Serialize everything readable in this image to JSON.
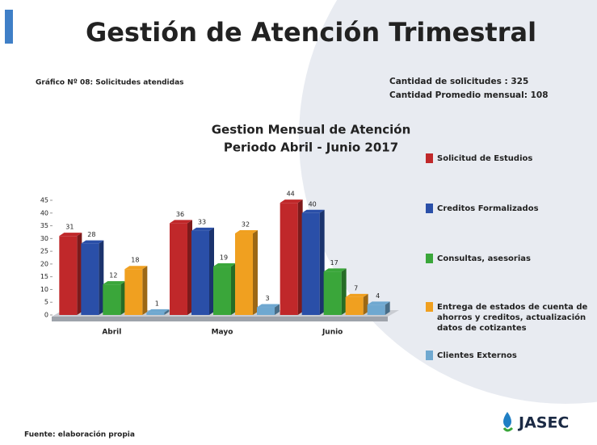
{
  "slide": {
    "title": "Gestión de Atención Trimestral",
    "caption": "Gráfico Nº 08: Solicitudes atendidas",
    "total": "Cantidad de solicitudes : 325",
    "average": "Cantidad Promedio mensual: 108",
    "source": "Fuente: elaboración propia",
    "logo": "JASEC"
  },
  "chart_data": {
    "type": "bar",
    "title": "Gestion Mensual de Atención",
    "subtitle": "Periodo Abril - Junio 2017",
    "categories": [
      "Abril",
      "Mayo",
      "Junio"
    ],
    "series": [
      {
        "name": "Solicitud de Estudios",
        "color": "#c0282a",
        "values": [
          31,
          36,
          44
        ]
      },
      {
        "name": "Creditos Formalizados",
        "color": "#2a4fa8",
        "values": [
          28,
          33,
          40
        ]
      },
      {
        "name": "Consultas, asesorias",
        "color": "#3aa63a",
        "values": [
          12,
          19,
          17
        ]
      },
      {
        "name": "Entrega de estados de cuenta de ahorros y creditos, actualización datos de cotizantes",
        "color": "#f0a020",
        "values": [
          18,
          32,
          7
        ]
      },
      {
        "name": "Clientes Externos",
        "color": "#6fa8d0",
        "values": [
          1,
          3,
          4
        ]
      }
    ],
    "ylim": [
      0,
      45
    ],
    "yticks": [
      0,
      5,
      10,
      15,
      20,
      25,
      30,
      35,
      40,
      45
    ],
    "legend": "right"
  }
}
